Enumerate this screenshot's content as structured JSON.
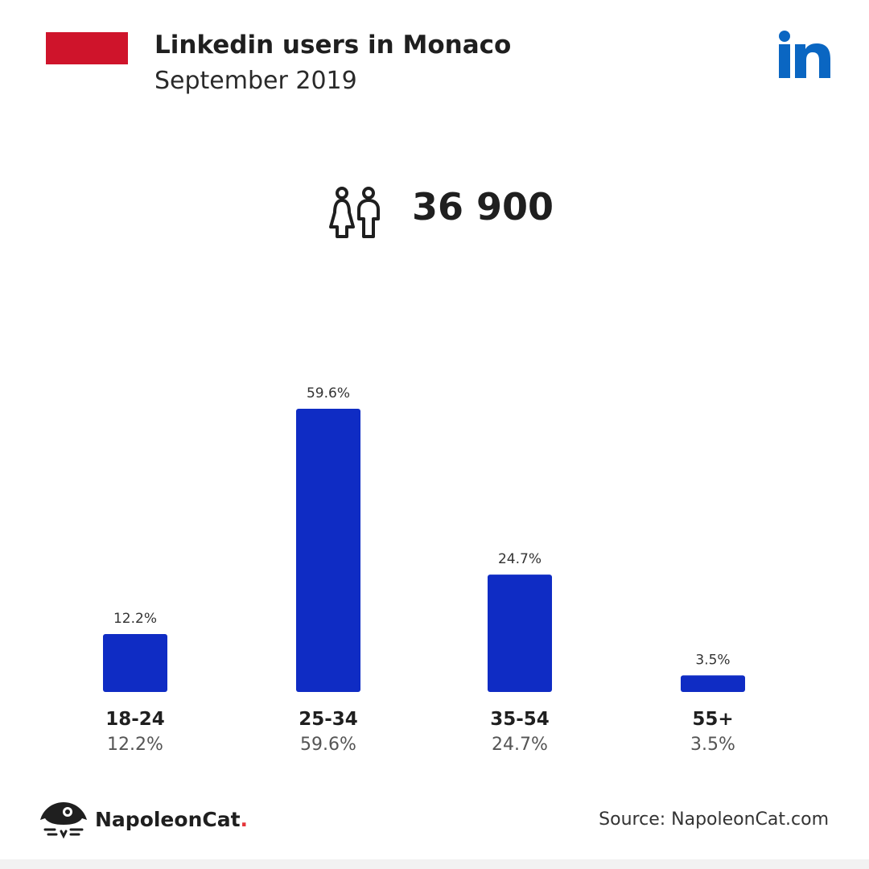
{
  "header": {
    "title": "Linkedin users in Monaco",
    "subtitle": "September 2019",
    "flag_colors": [
      "#cf142b",
      "#ffffff"
    ],
    "logo_icon": "linkedin-icon",
    "logo_color": "#0a66c2"
  },
  "summary": {
    "icon": "people-icon",
    "total": "36 900"
  },
  "chart_data": {
    "type": "bar",
    "categories": [
      "18-24",
      "25-34",
      "35-54",
      "55+"
    ],
    "values": [
      12.2,
      59.6,
      24.7,
      3.5
    ],
    "value_labels": [
      "12.2%",
      "59.6%",
      "24.7%",
      "3.5%"
    ],
    "bar_color": "#0f2cc4",
    "ylim": [
      0,
      59.6
    ],
    "grid": false,
    "legend": "none"
  },
  "footer": {
    "brand_name": "NapoleonCat",
    "brand_dot": ".",
    "brand_icon": "napoleoncat-logo-icon",
    "source": "Source: NapoleonCat.com"
  }
}
